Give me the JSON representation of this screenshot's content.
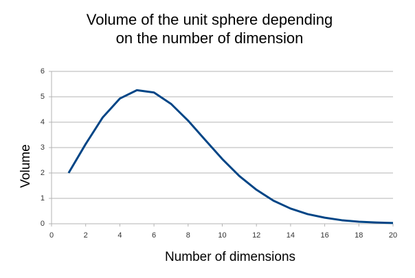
{
  "chart_data": {
    "type": "line",
    "title": [
      "Volume of the unit sphere depending",
      "on the number of dimension"
    ],
    "x_label": "Number of dimensions",
    "y_label": "Volume",
    "x": [
      1,
      2,
      3,
      4,
      5,
      6,
      7,
      8,
      9,
      10,
      11,
      12,
      13,
      14,
      15,
      16,
      17,
      18,
      19,
      20
    ],
    "series": [
      {
        "name": "Volume",
        "color": "#004586",
        "values": [
          2,
          3.14,
          4.19,
          4.93,
          5.26,
          5.17,
          4.72,
          4.06,
          3.3,
          2.55,
          1.88,
          1.34,
          0.91,
          0.6,
          0.38,
          0.24,
          0.14,
          0.08,
          0.05,
          0.03
        ]
      }
    ],
    "xlim": [
      0,
      20
    ],
    "xticks": [
      0,
      2,
      4,
      6,
      8,
      10,
      12,
      14,
      16,
      18,
      20
    ],
    "ylim": [
      0,
      6
    ],
    "yticks": [
      0,
      1,
      2,
      3,
      4,
      5,
      6
    ],
    "grid": true
  }
}
